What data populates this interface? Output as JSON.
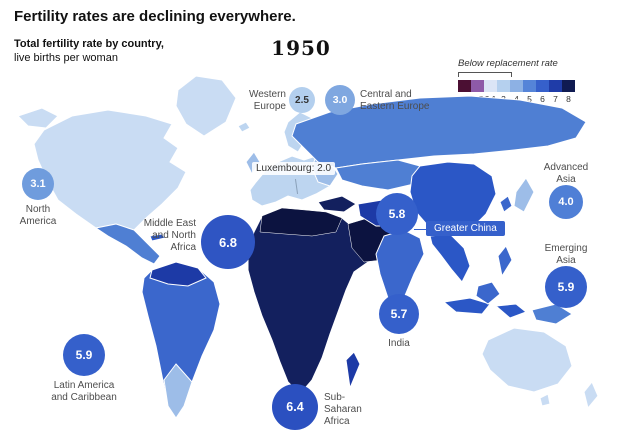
{
  "header": {
    "title": "Fertility rates are declining everywhere.",
    "subtitle_bold": "Total fertility rate by country,",
    "subtitle_regular": "live births per woman",
    "year": "1950"
  },
  "legend": {
    "annotation": "Below replacement rate",
    "stops": [
      {
        "label": "1",
        "color": "#4b0f33"
      },
      {
        "label": "1.5",
        "color": "#8e5aa8"
      },
      {
        "label": "2.1",
        "color": "#dbe5f6"
      },
      {
        "label": "3",
        "color": "#b5d0ee"
      },
      {
        "label": "4",
        "color": "#8db1e4"
      },
      {
        "label": "5",
        "color": "#5584d8"
      },
      {
        "label": "6",
        "color": "#3660cb"
      },
      {
        "label": "7",
        "color": "#1f3ca8"
      },
      {
        "label": "8",
        "color": "#101b52"
      }
    ]
  },
  "regions": {
    "western_europe": {
      "label": "Western Europe",
      "value": "2.5"
    },
    "central_eastern_europe": {
      "label": "Central and Eastern Europe",
      "value": "3.0"
    },
    "north_america": {
      "label": "North America",
      "value": "3.1"
    },
    "mena": {
      "label": "Middle East and North Africa",
      "value": "6.8"
    },
    "greater_china": {
      "label": "Greater China",
      "value": "5.8"
    },
    "advanced_asia": {
      "label": "Advanced Asia",
      "value": "4.0"
    },
    "emerging_asia": {
      "label": "Emerging Asia",
      "value": "5.9"
    },
    "india": {
      "label": "India",
      "value": "5.7"
    },
    "latin_america": {
      "label": "Latin America and Caribbean",
      "value": "5.9"
    },
    "sub_saharan_africa": {
      "label": "Sub-Saharan Africa",
      "value": "6.4"
    }
  },
  "annotations": {
    "luxembourg": "Luxembourg: 2.0"
  },
  "chart_data": {
    "type": "heatmap",
    "subtype": "choropleth-world-map",
    "title": "Fertility rates are declining everywhere.",
    "subtitle": "Total fertility rate by country, live births per woman",
    "year": 1950,
    "unit": "live births per woman",
    "color_scale": {
      "stops": [
        1,
        1.5,
        2.1,
        3,
        4,
        5,
        6,
        7,
        8
      ],
      "replacement_rate_threshold": 2.1,
      "below_replacement_label": "Below replacement rate",
      "palette": [
        "#4b0f33",
        "#8e5aa8",
        "#dbe5f6",
        "#b5d0ee",
        "#8db1e4",
        "#5584d8",
        "#3660cb",
        "#1f3ca8",
        "#101b52"
      ]
    },
    "regions": [
      {
        "name": "North America",
        "value": 3.1
      },
      {
        "name": "Western Europe",
        "value": 2.5
      },
      {
        "name": "Central and Eastern Europe",
        "value": 3.0
      },
      {
        "name": "Luxembourg",
        "value": 2.0
      },
      {
        "name": "Middle East and North Africa",
        "value": 6.8
      },
      {
        "name": "Sub-Saharan Africa",
        "value": 6.4
      },
      {
        "name": "Latin America and Caribbean",
        "value": 5.9
      },
      {
        "name": "India",
        "value": 5.7
      },
      {
        "name": "Greater China",
        "value": 5.8
      },
      {
        "name": "Advanced Asia",
        "value": 4.0
      },
      {
        "name": "Emerging Asia",
        "value": 5.9
      }
    ]
  }
}
